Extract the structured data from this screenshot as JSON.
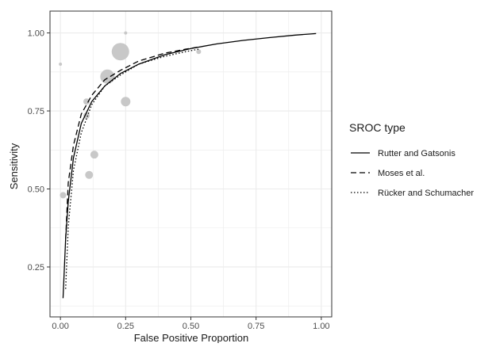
{
  "chart_data": {
    "type": "line",
    "xlabel": "False Positive Proportion",
    "ylabel": "Sensitivity",
    "xlim": [
      -0.04,
      1.04
    ],
    "ylim": [
      0.09,
      1.07
    ],
    "x_ticks": [
      0.0,
      0.25,
      0.5,
      0.75,
      1.0
    ],
    "x_tick_labels": [
      "0.00",
      "0.25",
      "0.50",
      "0.75",
      "1.00"
    ],
    "y_ticks": [
      0.25,
      0.5,
      0.75,
      1.0
    ],
    "y_tick_labels": [
      "0.25",
      "0.50",
      "0.75",
      "1.00"
    ],
    "grid": true,
    "legend_position": "right",
    "legend_title": "SROC type",
    "series": [
      {
        "name": "Rutter and Gatsonis",
        "line_style": "solid",
        "color": "#000000",
        "x": [
          0.01,
          0.02,
          0.03,
          0.05,
          0.08,
          0.12,
          0.17,
          0.23,
          0.3,
          0.4,
          0.5,
          0.6,
          0.7,
          0.8,
          0.9,
          0.98
        ],
        "y": [
          0.15,
          0.34,
          0.46,
          0.6,
          0.71,
          0.78,
          0.83,
          0.87,
          0.9,
          0.93,
          0.95,
          0.965,
          0.976,
          0.985,
          0.993,
          0.998
        ]
      },
      {
        "name": "Moses et al.",
        "line_style": "dashed",
        "color": "#000000",
        "x": [
          0.02,
          0.03,
          0.05,
          0.08,
          0.12,
          0.17,
          0.23,
          0.3,
          0.4,
          0.48,
          0.53
        ],
        "y": [
          0.34,
          0.52,
          0.64,
          0.74,
          0.8,
          0.85,
          0.88,
          0.91,
          0.935,
          0.948,
          0.955
        ]
      },
      {
        "name": "Rücker and Schumacher",
        "line_style": "dotted",
        "color": "#000000",
        "x": [
          0.02,
          0.03,
          0.05,
          0.08,
          0.12,
          0.17,
          0.23,
          0.3,
          0.4,
          0.48,
          0.53
        ],
        "y": [
          0.18,
          0.38,
          0.56,
          0.68,
          0.77,
          0.83,
          0.865,
          0.9,
          0.925,
          0.94,
          0.948
        ]
      }
    ],
    "study_points": [
      {
        "x": 0.0,
        "y": 0.9,
        "weight": 2
      },
      {
        "x": 0.01,
        "y": 0.48,
        "weight": 4
      },
      {
        "x": 0.1,
        "y": 0.78,
        "weight": 4
      },
      {
        "x": 0.1,
        "y": 0.735,
        "weight": 4
      },
      {
        "x": 0.11,
        "y": 0.545,
        "weight": 5
      },
      {
        "x": 0.13,
        "y": 0.61,
        "weight": 5
      },
      {
        "x": 0.18,
        "y": 0.86,
        "weight": 9
      },
      {
        "x": 0.23,
        "y": 0.94,
        "weight": 11
      },
      {
        "x": 0.25,
        "y": 1.0,
        "weight": 2
      },
      {
        "x": 0.25,
        "y": 0.78,
        "weight": 6
      },
      {
        "x": 0.53,
        "y": 0.94,
        "weight": 3
      }
    ],
    "colors": {
      "points": "#c8c8c8",
      "grid": "#ebebeb",
      "panel_border": "#333333"
    }
  }
}
